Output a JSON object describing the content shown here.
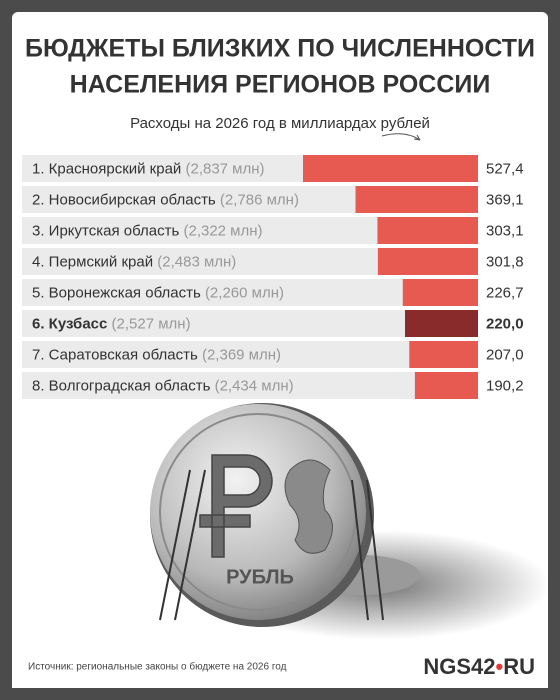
{
  "chart_data": {
    "type": "bar",
    "orientation": "horizontal",
    "title": [
      "БЮДЖЕТЫ БЛИЗКИХ ПО ЧИСЛЕННОСТИ",
      "НАСЕЛЕНИЯ РЕГИОНОВ РОССИИ"
    ],
    "subtitle": "Расходы на 2026 год в миллиардах рублей",
    "categories": [
      "1. Красноярский край",
      "2. Новосибирская область",
      "3. Иркутская область",
      "4. Пермский край",
      "5. Воронежская область",
      "6. Кузбасс",
      "7. Саратовская область",
      "8. Волгоградская область"
    ],
    "population_labels": [
      "(2,837 млн)",
      "(2,786 млн)",
      "(2,322 млн)",
      "(2,483 млн)",
      "(2,260 млн)",
      "(2,527 млн)",
      "(2,369 млн)",
      "(2,434 млн)"
    ],
    "values": [
      527.4,
      369.1,
      303.1,
      301.8,
      226.7,
      220.0,
      207.0,
      190.2
    ],
    "value_labels": [
      "527,4",
      "369,1",
      "303,1",
      "301,8",
      "226,7",
      "220,0",
      "207,0",
      "190,2"
    ],
    "color": "#e65a52",
    "highlight_color": "#8a2b2b",
    "highlight_index": 5
  },
  "illustration": {
    "coin_text": "РУБЛЬ"
  },
  "footer": {
    "source": "Источник: региональные законы о бюджете на 2026 год",
    "logo": "NGS42",
    "logo_suffix": "RU"
  }
}
